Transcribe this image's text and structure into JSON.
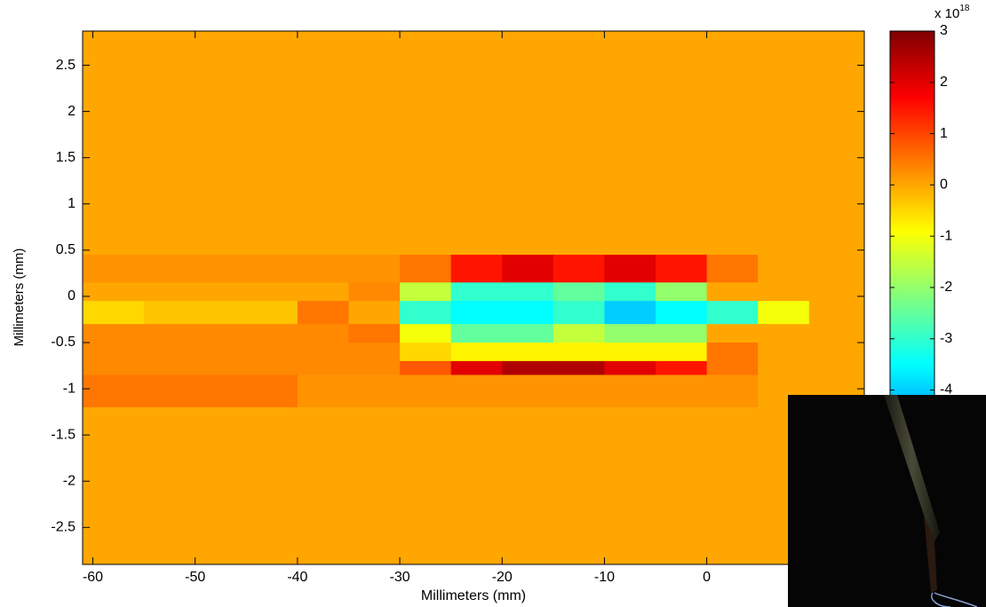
{
  "chart_data": {
    "type": "heatmap",
    "xlabel": "Millimeters (mm)",
    "ylabel": "Millimeters (mm)",
    "xlim": [
      -61,
      15.4
    ],
    "ylim": [
      -2.9,
      2.87
    ],
    "xticks": [
      -60,
      -50,
      -40,
      -30,
      -20,
      -10,
      0
    ],
    "yticks": [
      2.5,
      2,
      1.5,
      1,
      0.5,
      0,
      -0.5,
      -1,
      -1.5,
      -2,
      -2.5
    ],
    "colormap": "jet",
    "clim": [
      -7.4,
      3
    ],
    "colorbar_ticks": [
      3,
      2,
      1,
      0,
      -1,
      -2,
      -3,
      -4
    ],
    "colorbar_label": {
      "base": "x 10",
      "exponent": "18"
    },
    "x_edges": [
      -61,
      -55,
      -50,
      -45,
      -40,
      -35,
      -30,
      -25,
      -20,
      -15,
      -10,
      -5,
      0,
      5,
      10,
      15.4
    ],
    "y_edges": [
      2.87,
      0.45,
      0.15,
      -0.05,
      -0.3,
      -0.5,
      -0.7,
      -0.85,
      -1.2,
      -2.9
    ],
    "z": [
      [
        0,
        0,
        0,
        0,
        0,
        0,
        0,
        0,
        0,
        0,
        0,
        0,
        0,
        0,
        0
      ],
      [
        0.2,
        0.2,
        0.2,
        0.2,
        0.2,
        0.2,
        0.5,
        1.5,
        2,
        1.5,
        2,
        1.5,
        0.5,
        0,
        0
      ],
      [
        0,
        0,
        0,
        0,
        0,
        0.3,
        -1.5,
        -3,
        -3,
        -2.5,
        -3,
        -2,
        0,
        0,
        0
      ],
      [
        -0.5,
        -0.3,
        -0.3,
        -0.3,
        0.5,
        0,
        -3,
        -3.5,
        -3.5,
        -3,
        -4,
        -3.5,
        -3,
        -1,
        0
      ],
      [
        0.3,
        0.3,
        0.3,
        0.3,
        0.3,
        0.5,
        -1,
        -2.5,
        -2.5,
        -1.5,
        -2,
        -2,
        0,
        0,
        0
      ],
      [
        0.3,
        0.3,
        0.3,
        0.3,
        0.3,
        0.3,
        -0.5,
        -0.8,
        -0.8,
        -0.8,
        -0.8,
        -0.8,
        0.5,
        0,
        0
      ],
      [
        0.3,
        0.3,
        0.3,
        0.3,
        0.3,
        0.3,
        0.8,
        2,
        2.5,
        2.5,
        2,
        1.5,
        0.5,
        0,
        0
      ],
      [
        0.5,
        0.5,
        0.5,
        0.5,
        0.2,
        0.2,
        0.2,
        0.2,
        0.2,
        0.2,
        0.2,
        0.2,
        0.2,
        0,
        0
      ],
      [
        0,
        0,
        0,
        0,
        0,
        0,
        0,
        0,
        0,
        0,
        0,
        0,
        0,
        0,
        0
      ]
    ]
  }
}
